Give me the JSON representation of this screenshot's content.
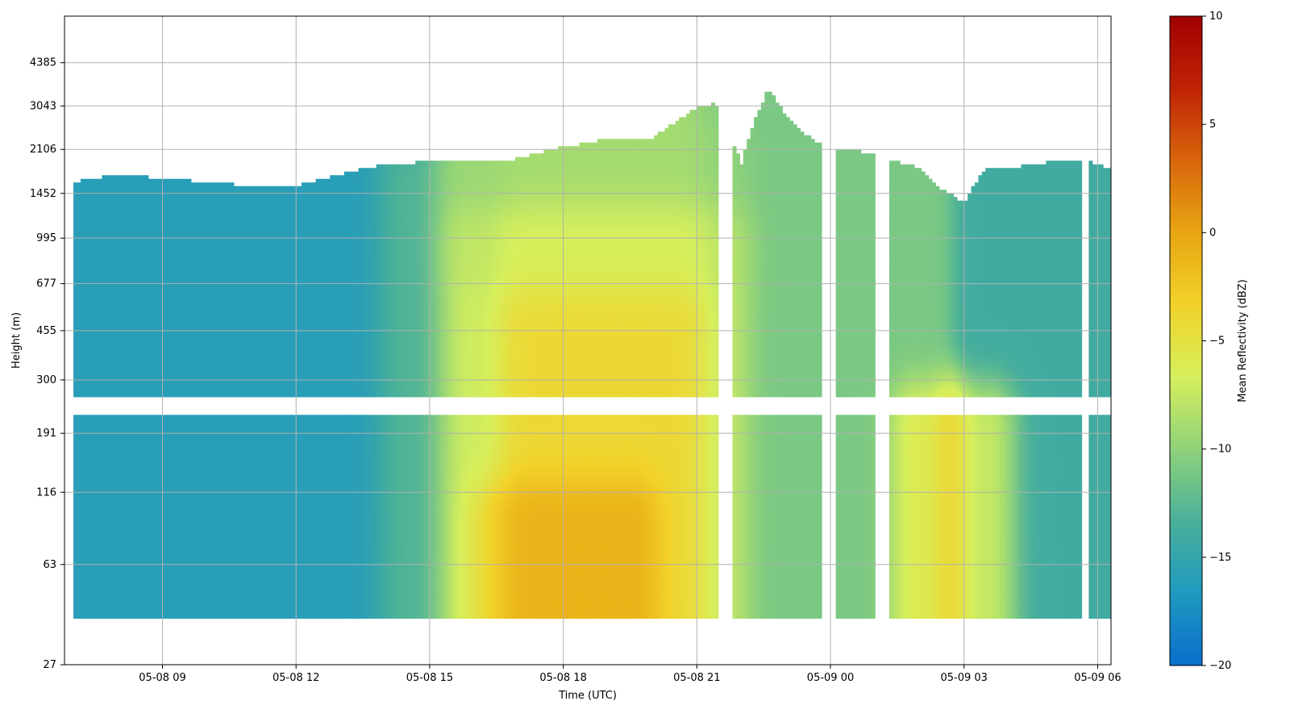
{
  "chart_data": {
    "type": "heatmap",
    "title": "",
    "xlabel": "Time (UTC)",
    "ylabel": "Height (m)",
    "x_ticks": [
      "05-08 09",
      "05-08 12",
      "05-08 15",
      "05-08 18",
      "05-08 21",
      "05-09 00",
      "05-09 03",
      "05-09 06"
    ],
    "x_tick_hours": [
      9,
      12,
      15,
      18,
      21,
      24,
      27,
      30
    ],
    "xlim_hours": [
      6.8,
      30.3
    ],
    "y_ticks": [
      27,
      63,
      116,
      191,
      300,
      455,
      677,
      995,
      1452,
      2106,
      3043,
      4385
    ],
    "y_scale": "log",
    "ylim": [
      27,
      6500
    ],
    "grid": true,
    "colorbar": {
      "label": "Mean Reflectivity (dBZ)",
      "range": [
        -20,
        10
      ],
      "ticks": [
        "10",
        "5",
        "0",
        "−5",
        "−10",
        "−15",
        "−20"
      ],
      "tick_values": [
        10,
        5,
        0,
        -5,
        -10,
        -15,
        -20
      ],
      "colormap": [
        "#0a6ecd",
        "#1f99bf",
        "#4ab09a",
        "#8fd27a",
        "#d6ef5c",
        "#f2d22a",
        "#e8a512",
        "#d8660c",
        "#bf2305",
        "#a00000"
      ]
    },
    "echo_top": {
      "hours": [
        7.0,
        8.0,
        9.0,
        10.0,
        11.0,
        12.0,
        13.0,
        13.5,
        14.0,
        15.0,
        16.0,
        17.0,
        18.0,
        19.0,
        20.0,
        20.5,
        21.0,
        21.4,
        22.0,
        22.6,
        23.0,
        23.5,
        23.8,
        24.1,
        25.0,
        25.2,
        26.0,
        26.5,
        27.0,
        27.5,
        28.0,
        29.0,
        29.6,
        29.8,
        30.2
      ],
      "top_m": [
        1600,
        1700,
        1650,
        1600,
        1550,
        1550,
        1700,
        1800,
        1850,
        1900,
        1900,
        1950,
        2150,
        2300,
        2300,
        2650,
        3000,
        3100,
        1850,
        3500,
        2800,
        2350,
        2200,
        2100,
        2050,
        1950,
        1800,
        1500,
        1350,
        1800,
        1800,
        1900,
        1900,
        1900,
        1800
      ]
    },
    "data_gaps_hours": [
      [
        21.5,
        21.8
      ],
      [
        23.8,
        24.1
      ],
      [
        25.0,
        25.3
      ],
      [
        29.6,
        29.8
      ]
    ],
    "gap_height_band_m": [
      220,
      260
    ],
    "reflectivity_features": [
      {
        "start_h": 6.8,
        "end_h": 14.5,
        "height_m": [
          40,
          1800
        ],
        "dbz": -16
      },
      {
        "start_h": 14.5,
        "end_h": 16.0,
        "height_m": [
          40,
          1600
        ],
        "dbz": -10
      },
      {
        "start_h": 16.0,
        "end_h": 21.5,
        "height_m": [
          40,
          900
        ],
        "dbz": -4
      },
      {
        "start_h": 16.0,
        "end_h": 21.5,
        "height_m": [
          900,
          2000
        ],
        "dbz": -9
      },
      {
        "start_h": 16.5,
        "end_h": 19.5,
        "height_m": [
          40,
          90
        ],
        "dbz": 2
      },
      {
        "start_h": 21.8,
        "end_h": 26.0,
        "height_m": [
          40,
          2500
        ],
        "dbz": -11
      },
      {
        "start_h": 26.0,
        "end_h": 27.5,
        "height_m": [
          40,
          200
        ],
        "dbz": -1
      },
      {
        "start_h": 27.5,
        "end_h": 30.2,
        "height_m": [
          40,
          1900
        ],
        "dbz": -14
      }
    ]
  }
}
